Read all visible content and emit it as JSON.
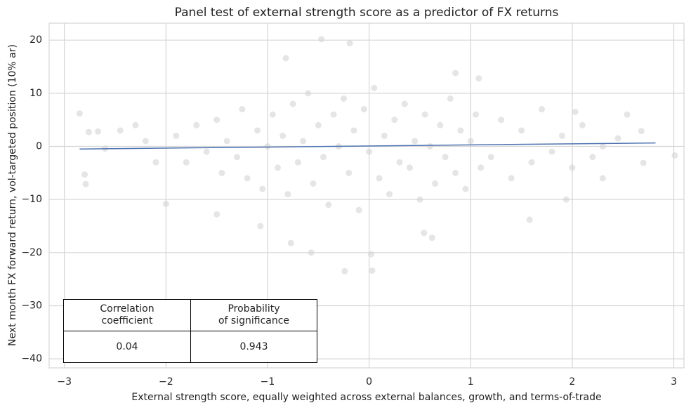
{
  "chart_data": {
    "type": "scatter",
    "title": "Panel test of external strength score as a predictor of FX returns",
    "xlabel": "External strength score, equally weighted across external balances, growth, and terms-of-trade",
    "ylabel": "Next month FX forward return, vol-targeted position (10% ar)",
    "xlim": [
      -3.15,
      3.1
    ],
    "ylim": [
      -41.7,
      23.2
    ],
    "xticks": [
      {
        "value": -3,
        "label": "−3"
      },
      {
        "value": -2,
        "label": "−2"
      },
      {
        "value": -1,
        "label": "−1"
      },
      0,
      1,
      2,
      3
    ],
    "yticks": [
      {
        "value": -40,
        "label": "−40"
      },
      {
        "value": -30,
        "label": "−30"
      },
      {
        "value": -20,
        "label": "−20"
      },
      {
        "value": -10,
        "label": "−10"
      },
      0,
      10,
      20
    ],
    "grid": true,
    "points": {
      "color": "#d3d3d3",
      "x": [
        -1.9,
        -1.8,
        -1.7,
        -1.6,
        -1.5,
        -1.45,
        -1.4,
        -1.3,
        -1.25,
        -1.2,
        -1.1,
        -1.05,
        -1,
        -0.95,
        -0.9,
        -0.85,
        -0.8,
        -0.75,
        -0.7,
        -0.65,
        -0.6,
        -0.55,
        -0.5,
        -0.45,
        -0.4,
        -0.35,
        -0.3,
        -0.25,
        -0.2,
        -0.15,
        -0.1,
        -0.05,
        0,
        0.05,
        0.1,
        0.15,
        0.2,
        0.25,
        0.3,
        0.35,
        0.4,
        0.45,
        0.5,
        0.55,
        0.6,
        0.65,
        0.7,
        0.75,
        0.8,
        0.85,
        0.9,
        0.95,
        1,
        1.05,
        1.1,
        1.2,
        1.3,
        1.4,
        1.5,
        1.6,
        1.7,
        1.8,
        1.9,
        2.0,
        2.1,
        2.2,
        -2.2,
        -2.1,
        -2.3,
        2.3,
        -2.85,
        -2.8,
        -2.79,
        -2.76,
        -2.67,
        -2.6,
        -2.45,
        -2.0,
        -1.5,
        -1.07,
        -0.77,
        -0.57,
        -0.47,
        -0.19,
        -0.24,
        0.03,
        0.02,
        -0.82,
        0.85,
        1.08,
        0.54,
        0.62,
        1.58,
        1.94,
        2.54,
        2.7,
        2.3,
        2.68,
        3.01,
        2.03,
        2.45
      ],
      "y": [
        2,
        -3,
        4,
        -1,
        5,
        -5,
        1,
        -2,
        7,
        -6,
        3,
        -8,
        0,
        6,
        -4,
        2,
        -9,
        8,
        -3,
        1,
        10,
        -7,
        4,
        -2,
        -11,
        6,
        0,
        9,
        -5,
        3,
        -12,
        7,
        -1,
        11,
        -6,
        2,
        -9,
        5,
        -3,
        8,
        -4,
        1,
        -10,
        6,
        0,
        -7,
        4,
        -2,
        9,
        -5,
        3,
        -8,
        1,
        6,
        -4,
        -2,
        5,
        -6,
        3,
        -3,
        7,
        -1,
        2,
        -4,
        4,
        -2,
        1,
        -3,
        4,
        0,
        6.2,
        -5.3,
        -7.1,
        2.7,
        2.8,
        -0.4,
        3,
        -10.8,
        -12.8,
        -15,
        -18.2,
        -20,
        20.2,
        19.4,
        -23.5,
        -23.4,
        -20.3,
        16.6,
        13.8,
        12.8,
        -16.3,
        -17.2,
        -13.8,
        -10,
        6,
        -3.1,
        -6,
        2.9,
        -1.7,
        6.5,
        1.5
      ]
    },
    "fit": {
      "color": "#4c72b0",
      "x": [
        -2.85,
        2.82
      ],
      "y": [
        -0.5,
        0.65
      ]
    },
    "table": {
      "headers": [
        "Correlation\ncoefficient",
        "Probability\nof significance"
      ],
      "values": [
        0.04,
        0.943
      ]
    }
  }
}
